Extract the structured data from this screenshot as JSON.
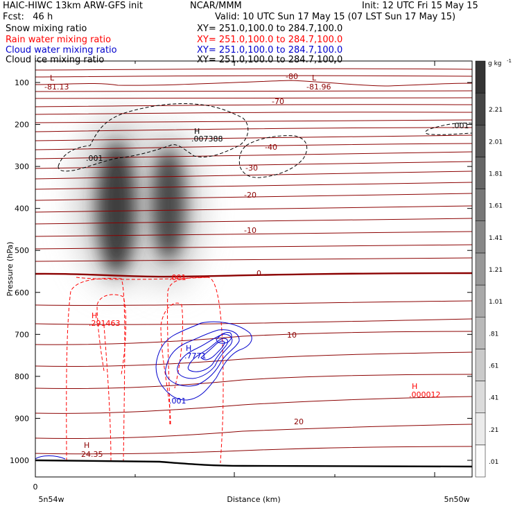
{
  "header": {
    "model": "HAIC-HIWC 13km ARW-GFS init",
    "org": "NCAR/MMM",
    "init": "Init: 12 UTC Fri 15 May 15",
    "fcst": "Fcst:   46 h",
    "valid": "Valid: 10 UTC Sun 17 May 15 (07 LST Sun 17 May 15)",
    "fields": [
      {
        "name": "Snow mixing ratio",
        "xy": "XY= 251.0,100.0 to 284.7,100.0",
        "color": "#000000"
      },
      {
        "name": "Rain water mixing ratio",
        "xy": "XY= 251.0,100.0 to 284.7,100.0",
        "color": "#ff0000"
      },
      {
        "name": "Cloud water mixing ratio",
        "xy": "XY= 251.0,100.0 to 284.7,100.0",
        "color": "#0000cc"
      },
      {
        "name": "Cloud ice mixing ratio",
        "xy": "XY= 251.0,100.0 to 284.7,100.0",
        "color": "#000000"
      }
    ]
  },
  "chart_data": {
    "type": "heatmap",
    "ylabel": "Pressure (hPa)",
    "xlabel": "Distance (km)",
    "y_ticks": [
      100,
      200,
      300,
      400,
      500,
      600,
      700,
      800,
      900,
      1000
    ],
    "x_tick_labels": {
      "origin": "0",
      "left": "5n54w",
      "right": "5n50w"
    },
    "colorbar": {
      "unit_label": "g kg",
      "unit_exponent": "-1",
      "ticks": [
        ".01",
        ".21",
        ".41",
        ".61",
        ".81",
        "1.01",
        "1.21",
        "1.41",
        "1.61",
        "1.81",
        "2.01",
        "2.21"
      ],
      "values": [
        0.01,
        0.21,
        0.41,
        0.61,
        0.81,
        1.01,
        1.21,
        1.41,
        1.61,
        1.81,
        2.01,
        2.21
      ]
    },
    "temperature_labels": [
      "-80",
      "-70",
      "-40",
      "-30",
      "-20",
      "-10",
      "0",
      "10",
      "20"
    ],
    "annotations": {
      "low_left": {
        "letter": "L",
        "value": "-81.13"
      },
      "low_right": {
        "letter": "L",
        "value": "-81.96"
      },
      "snow_high": {
        "letter": "H",
        "value": ".007388"
      },
      "snow_contour_left": ".001",
      "snow_contour_right": ".001",
      "rain_contour": ".001",
      "rain_high_left": {
        "letter": "H",
        "value": ".291463"
      },
      "cloud_high": {
        "letter": "H",
        "value": ".7771"
      },
      "cloud_contour": ".001",
      "rain_high_right": {
        "letter": "H",
        "value": ".000012"
      },
      "surface_high": {
        "letter": "H",
        "value": "24.35"
      }
    },
    "colors": {
      "temperature": "#8b0000",
      "snow": "#000000",
      "rain": "#ff0000",
      "cloud_water": "#0000cc",
      "terrain": "#000000"
    }
  }
}
